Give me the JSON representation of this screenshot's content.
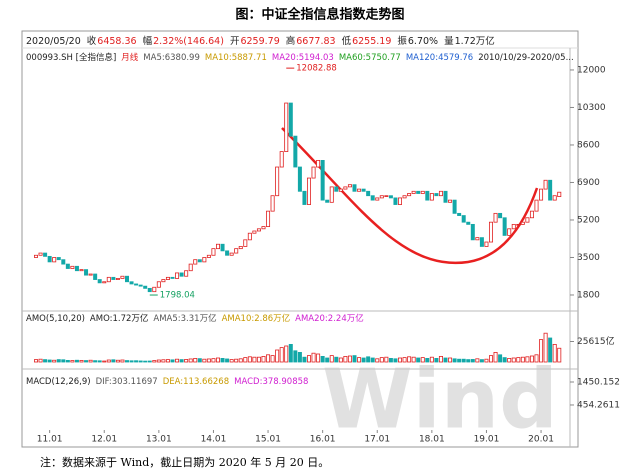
{
  "caption": "图：中证全指信息指数走势图",
  "note": "注：数据来源于 Wind，截止日期为 2020 年 5 月 20 日。",
  "watermark": "Wind",
  "chart_data": [
    {
      "type": "candlestick",
      "date": "2020/05/20",
      "info": [
        {
          "label": "收",
          "value": "6458.36",
          "color": "#e02020"
        },
        {
          "label": "幅",
          "value": "2.32%(146.64)",
          "color": "#e02020"
        },
        {
          "label": "开",
          "value": "6259.79",
          "color": "#e02020"
        },
        {
          "label": "高",
          "value": "6677.83",
          "color": "#e02020"
        },
        {
          "label": "低",
          "value": "6255.19",
          "color": "#e02020"
        },
        {
          "label": "振",
          "value": "6.70%",
          "color": "#222222"
        },
        {
          "label": "量",
          "value": "1.72万亿",
          "color": "#222222"
        }
      ],
      "legend": [
        {
          "text": "000993.SH [全指信息]",
          "color": "#222222"
        },
        {
          "text": "月线",
          "color": "#e02020"
        },
        {
          "text": "MA5:6380.99",
          "color": "#555555"
        },
        {
          "text": "MA10:5887.71",
          "color": "#c89a00"
        },
        {
          "text": "MA20:5194.03",
          "color": "#d020d0"
        },
        {
          "text": "MA60:5750.77",
          "color": "#20a020"
        },
        {
          "text": "MA120:4579.76",
          "color": "#2060d0"
        },
        {
          "text": "2010/10/29-2020/05...",
          "color": "#222222"
        }
      ],
      "categories": [
        null,
        null,
        null,
        "11.01",
        null,
        null,
        null,
        null,
        null,
        null,
        null,
        null,
        null,
        null,
        null,
        "12.01",
        null,
        null,
        null,
        null,
        null,
        null,
        null,
        null,
        null,
        null,
        null,
        "13.01",
        null,
        null,
        null,
        null,
        null,
        null,
        null,
        null,
        null,
        null,
        null,
        "14.01",
        null,
        null,
        null,
        null,
        null,
        null,
        null,
        null,
        null,
        null,
        null,
        "15.01",
        null,
        null,
        null,
        null,
        null,
        null,
        null,
        null,
        null,
        null,
        null,
        "16.01",
        null,
        null,
        null,
        null,
        null,
        null,
        null,
        null,
        null,
        null,
        null,
        "17.01",
        null,
        null,
        null,
        null,
        null,
        null,
        null,
        null,
        null,
        null,
        null,
        "18.01",
        null,
        null,
        null,
        null,
        null,
        null,
        null,
        null,
        null,
        null,
        null,
        "19.01",
        null,
        null,
        null,
        null,
        null,
        null,
        null,
        null,
        null,
        null,
        null,
        "20.01",
        null,
        null,
        null,
        null
      ],
      "open": [
        3500,
        3600,
        3700,
        3550,
        3300,
        3500,
        3400,
        3200,
        3000,
        3100,
        2900,
        2950,
        2700,
        2750,
        2500,
        2350,
        2400,
        2600,
        2500,
        2550,
        2650,
        2400,
        2300,
        2250,
        2200,
        2100,
        1950,
        2150,
        2400,
        2500,
        2600,
        2550,
        2800,
        2650,
        2900,
        3200,
        3400,
        3300,
        3500,
        3600,
        3900,
        4100,
        3800,
        3600,
        3700,
        3900,
        4000,
        4300,
        4600,
        4700,
        4800,
        4900,
        5600,
        6300,
        7600,
        8300,
        10500,
        9000,
        7600,
        6500,
        5900,
        7100,
        7600,
        7900,
        6100,
        6000,
        6700,
        6500,
        6600,
        6700,
        6800,
        6500,
        6600,
        6500,
        6300,
        6100,
        6200,
        6300,
        6300,
        6200,
        5900,
        6200,
        6300,
        6400,
        6500,
        6400,
        6500,
        6100,
        6400,
        6300,
        6500,
        6000,
        6100,
        5500,
        5400,
        5100,
        5000,
        4300,
        4400,
        4000,
        4200,
        5100,
        5500,
        5300,
        4500,
        4800,
        5000,
        5000,
        5100,
        5300,
        5600,
        6100,
        6600,
        7000,
        6100,
        6259.79
      ],
      "close": [
        3600,
        3700,
        3550,
        3300,
        3500,
        3400,
        3200,
        3000,
        3100,
        2900,
        2950,
        2700,
        2750,
        2500,
        2350,
        2400,
        2600,
        2500,
        2550,
        2650,
        2400,
        2300,
        2250,
        2200,
        2100,
        1950,
        2150,
        2400,
        2500,
        2600,
        2550,
        2800,
        2650,
        2900,
        3200,
        3400,
        3300,
        3500,
        3600,
        3900,
        4100,
        3800,
        3600,
        3700,
        3900,
        4000,
        4300,
        4600,
        4700,
        4800,
        4900,
        5600,
        6300,
        7600,
        8300,
        10500,
        9000,
        7600,
        6500,
        5900,
        7100,
        7600,
        7900,
        6100,
        6000,
        6700,
        6500,
        6600,
        6700,
        6800,
        6500,
        6600,
        6500,
        6300,
        6100,
        6200,
        6300,
        6300,
        6200,
        5900,
        6200,
        6300,
        6400,
        6500,
        6400,
        6500,
        6100,
        6400,
        6300,
        6500,
        6000,
        6100,
        5500,
        5400,
        5100,
        5000,
        4300,
        4400,
        4000,
        4200,
        5100,
        5500,
        5300,
        4500,
        4800,
        5000,
        5000,
        5100,
        5300,
        5600,
        6100,
        6600,
        7000,
        6100,
        6300,
        6458.36
      ],
      "up_color": "#e02020",
      "down_color": "#13a8a8",
      "high": 12082.88,
      "low": 1798.04,
      "ylim": [
        1210,
        12270
      ],
      "yticks": [
        1800,
        3500,
        5200,
        6900,
        8600,
        10300,
        12000
      ]
    },
    {
      "type": "bar",
      "legend": [
        {
          "text": "AMO(5,10,20)",
          "color": "#222222"
        },
        {
          "text": "AMO:1.72万亿",
          "color": "#222222"
        },
        {
          "text": "AMA5:3.31万亿",
          "color": "#555555"
        },
        {
          "text": "AMA10:2.86万亿",
          "color": "#c89a00"
        },
        {
          "text": "AMA20:2.24万亿",
          "color": "#d020d0"
        }
      ],
      "values": [
        3000,
        3500,
        3000,
        2500,
        2200,
        3000,
        2800,
        2000,
        1800,
        2200,
        2000,
        1800,
        2200,
        1700,
        1500,
        1200,
        2500,
        2800,
        2200,
        2500,
        1800,
        1500,
        1600,
        1300,
        1100,
        1200,
        1800,
        2500,
        2800,
        3000,
        2700,
        3500,
        3000,
        3200,
        3800,
        4500,
        4200,
        3500,
        3800,
        4200,
        5000,
        4500,
        3800,
        3000,
        3500,
        4000,
        5500,
        6500,
        6000,
        6000,
        7000,
        9000,
        8000,
        15000,
        18000,
        20000,
        22000,
        14000,
        12000,
        6000,
        8000,
        11000,
        10000,
        7000,
        5000,
        8000,
        6000,
        5000,
        7000,
        7500,
        8000,
        5500,
        5000,
        6500,
        5000,
        4000,
        5500,
        6000,
        4500,
        4000,
        5000,
        5500,
        6500,
        6000,
        5000,
        5500,
        4500,
        6000,
        4500,
        7000,
        5000,
        5000,
        4000,
        3500,
        3500,
        3000,
        3200,
        4000,
        3000,
        3500,
        8000,
        12000,
        9000,
        5500,
        4500,
        5000,
        5500,
        6000,
        6500,
        7500,
        9000,
        28000,
        36000,
        30000,
        22000,
        17200
      ],
      "ylim": [
        0,
        45000
      ],
      "yticks": [
        {
          "value": 25615,
          "label": "25615亿"
        }
      ]
    },
    {
      "type": "macd",
      "legend": [
        {
          "text": "MACD(12,26,9)",
          "color": "#222222"
        },
        {
          "text": "DIF:303.11697",
          "color": "#555555"
        },
        {
          "text": "DEA:113.66268",
          "color": "#c89a00"
        },
        {
          "text": "MACD:378.90858",
          "color": "#d020d0"
        }
      ],
      "ylim": [
        -630,
        1710
      ],
      "yticks": [
        1450.152,
        454.2611
      ]
    }
  ]
}
